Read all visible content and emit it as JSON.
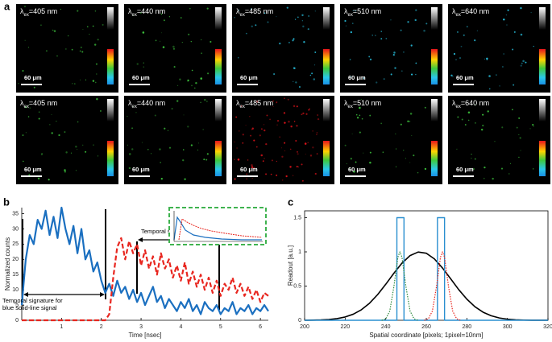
{
  "panel_labels": [
    "a",
    "b",
    "c"
  ],
  "panel_a": {
    "rows": [
      [
        {
          "symbol": "λ",
          "subscript": "ex",
          "wavelength": "=405 nm",
          "scale_bar": "60 μm"
        },
        {
          "symbol": "λ",
          "subscript": "ex",
          "wavelength": "=440 nm",
          "scale_bar": "60 μm"
        },
        {
          "symbol": "λ",
          "subscript": "ex",
          "wavelength": "=485 nm",
          "scale_bar": "60 μm"
        },
        {
          "symbol": "λ",
          "subscript": "ex",
          "wavelength": "=510 nm",
          "scale_bar": "60 μm"
        },
        {
          "symbol": "λ",
          "subscript": "ex",
          "wavelength": "=640 nm",
          "scale_bar": "60 μm"
        }
      ],
      [
        {
          "symbol": "λ",
          "subscript": "ex",
          "wavelength": "=405 nm",
          "scale_bar": "60 μm"
        },
        {
          "symbol": "λ",
          "subscript": "ex",
          "wavelength": "=440 nm",
          "scale_bar": "60 μm"
        },
        {
          "symbol": "λ",
          "subscript": "ex",
          "wavelength": "=485 nm",
          "scale_bar": "60 μm"
        },
        {
          "symbol": "λ",
          "subscript": "ex",
          "wavelength": "=510 nm",
          "scale_bar": "60 μm"
        },
        {
          "symbol": "λ",
          "subscript": "ex",
          "wavelength": "=640 nm",
          "scale_bar": "60 μm"
        }
      ]
    ]
  },
  "chart_data": [
    {
      "type": "line",
      "x_label": "Time [nsec]",
      "y_label": "Normalized counts",
      "xlim": [
        0,
        6.2
      ],
      "xticks": [
        1,
        2,
        3,
        4,
        5,
        6
      ],
      "ylim": [
        0,
        37
      ],
      "yticks": [
        0,
        5,
        10,
        15,
        20,
        25,
        30,
        35
      ],
      "annotations": [
        [
          "Temporal signature for",
          "blue solid-line signal"
        ],
        [
          "Temporal signature for red dashed-line signal"
        ]
      ],
      "x": [
        0,
        0.1,
        0.2,
        0.3,
        0.4,
        0.5,
        0.6,
        0.7,
        0.8,
        0.9,
        1.0,
        1.1,
        1.2,
        1.3,
        1.4,
        1.5,
        1.6,
        1.7,
        1.8,
        1.9,
        2.0,
        2.1,
        2.2,
        2.3,
        2.4,
        2.5,
        2.6,
        2.7,
        2.8,
        2.9,
        3.0,
        3.1,
        3.2,
        3.3,
        3.4,
        3.5,
        3.6,
        3.7,
        3.8,
        3.9,
        4.0,
        4.1,
        4.2,
        4.3,
        4.4,
        4.5,
        4.6,
        4.7,
        4.8,
        4.9,
        5.0,
        5.1,
        5.2,
        5.3,
        5.4,
        5.5,
        5.6,
        5.7,
        5.8,
        5.9,
        6.0,
        6.1,
        6.2
      ],
      "series": [
        {
          "color": "#1a6fc0",
          "line_style": "solid",
          "width": 2.2,
          "values": [
            5,
            20,
            28,
            25,
            33,
            30,
            36,
            28,
            34,
            27,
            37,
            30,
            25,
            31,
            22,
            30,
            20,
            23,
            16,
            19,
            13,
            9,
            12,
            8,
            13,
            9,
            11,
            7,
            10,
            6,
            9,
            5,
            8,
            11,
            6,
            8,
            4,
            7,
            5,
            3,
            6,
            4,
            7,
            3,
            5,
            2,
            6,
            4,
            3,
            5,
            2,
            4,
            3,
            6,
            2,
            4,
            3,
            5,
            2,
            4,
            3,
            5,
            3
          ]
        },
        {
          "color": "#e8261f",
          "line_style": "dashed",
          "width": 2.2,
          "values": [
            0,
            0,
            0,
            0,
            0,
            0,
            0,
            0,
            0,
            0,
            0,
            0,
            0,
            0,
            0,
            0,
            0,
            0,
            0,
            0,
            0,
            0,
            2,
            14,
            24,
            27,
            20,
            26,
            22,
            25,
            18,
            23,
            17,
            21,
            15,
            22,
            17,
            20,
            14,
            18,
            13,
            19,
            12,
            16,
            11,
            15,
            10,
            14,
            9,
            13,
            8,
            12,
            10,
            14,
            9,
            12,
            8,
            11,
            7,
            10,
            6,
            9,
            8
          ]
        }
      ]
    },
    {
      "type": "line",
      "x_label": "Spatial coordinate [pixels; 1pixel=10nm]",
      "y_label": "Readout [a.u.]",
      "xlim": [
        200,
        320
      ],
      "xticks": [
        200,
        220,
        240,
        260,
        280,
        300,
        320
      ],
      "ylim": [
        0,
        1.6
      ],
      "yticks": [
        0,
        0.5,
        1,
        1.5
      ],
      "series": [
        {
          "color": "#000000",
          "line_style": "solid",
          "width": 1.6,
          "x": [
            200,
            204,
            208,
            212,
            216,
            220,
            224,
            228,
            232,
            236,
            240,
            244,
            248,
            252,
            256,
            260,
            264,
            268,
            272,
            276,
            280,
            284,
            288,
            292,
            296,
            300,
            304,
            308,
            312,
            316,
            320
          ],
          "values": [
            0.0007,
            0.0019,
            0.0048,
            0.011,
            0.024,
            0.048,
            0.089,
            0.154,
            0.249,
            0.375,
            0.526,
            0.687,
            0.835,
            0.946,
            0.998,
            0.98,
            0.897,
            0.764,
            0.607,
            0.448,
            0.309,
            0.198,
            0.118,
            0.066,
            0.034,
            0.016,
            0.007,
            0.003,
            0.001,
            0.0005,
            0.0002
          ]
        },
        {
          "color": "#2a8fd0",
          "line_style": "solid",
          "width": 1.4,
          "x": [
            200,
            245.5,
            245.5,
            249,
            249,
            265.5,
            265.5,
            269,
            269,
            320
          ],
          "values": [
            0,
            0,
            1.5,
            1.5,
            0,
            0,
            1.5,
            1.5,
            0,
            0
          ]
        },
        {
          "color": "#2e8b3e",
          "line_style": "dotted",
          "width": 1.2,
          "x": [
            238,
            240,
            242,
            244,
            246,
            247,
            248,
            250,
            252,
            254,
            256
          ],
          "values": [
            0,
            0.02,
            0.135,
            0.487,
            0.923,
            1,
            0.923,
            0.487,
            0.135,
            0.02,
            0
          ]
        },
        {
          "color": "#e8261f",
          "line_style": "dotted",
          "width": 1.2,
          "x": [
            259,
            261,
            263,
            265,
            267,
            268,
            269,
            271,
            273,
            275,
            277
          ],
          "values": [
            0,
            0.02,
            0.135,
            0.487,
            0.923,
            1,
            0.923,
            0.487,
            0.135,
            0.02,
            0
          ]
        }
      ]
    }
  ]
}
